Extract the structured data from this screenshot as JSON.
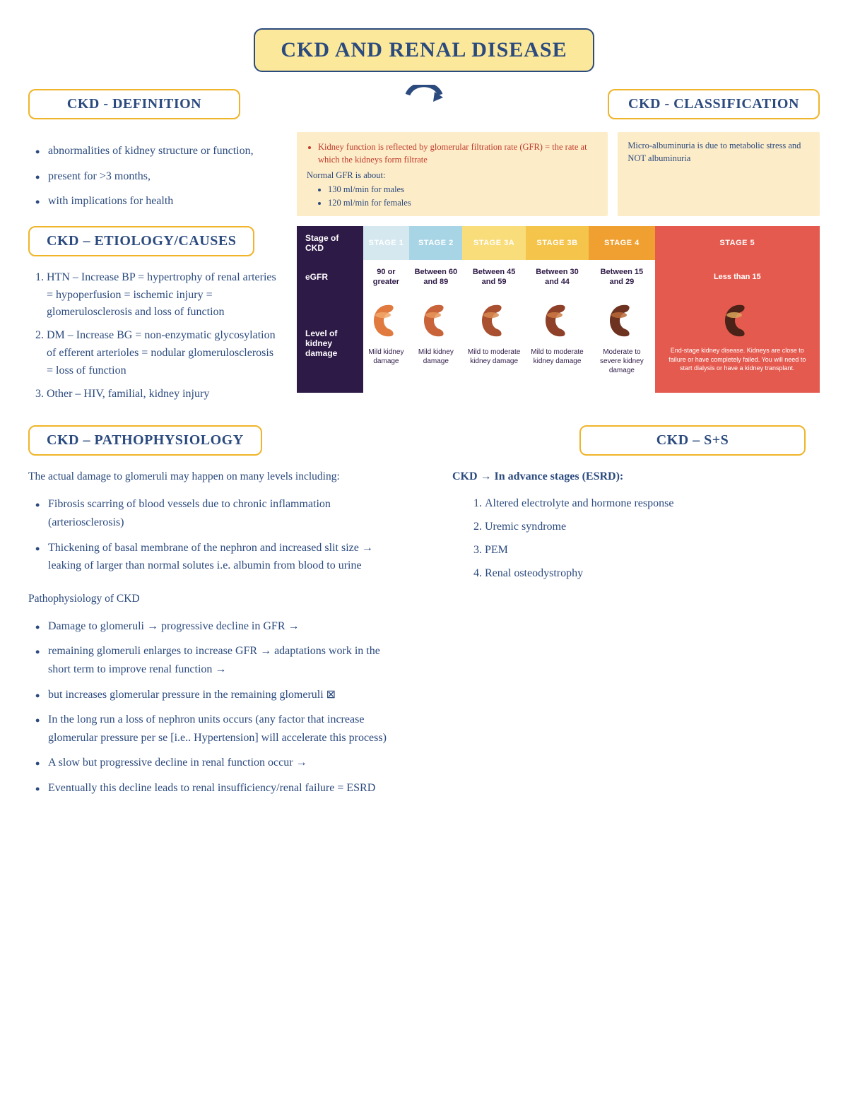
{
  "title": "CKD AND RENAL DISEASE",
  "colors": {
    "title_bg": "#fce89a",
    "border_navy": "#2b4a7e",
    "section_border": "#f0b429",
    "info_bg": "#fdecc8",
    "table_header_bg": "#2e1a47",
    "red_text": "#c0392b"
  },
  "sections": {
    "definition": {
      "heading": "CKD - DEFINITION",
      "bullets": [
        "abnormalities of kidney structure or function,",
        "present for >3 months,",
        "with implications for health"
      ]
    },
    "classification": {
      "heading": "CKD - CLASSIFICATION",
      "info1": {
        "line1_red": "Kidney function is reflected by glomerular filtration rate (GFR)",
        "line1_rest": " = the rate at which the kidneys form filtrate",
        "line2": "Normal GFR is about:",
        "sub": [
          "130 ml/min for males",
          "120 ml/min for females"
        ]
      },
      "info2": "Micro-albuminuria is due to metabolic stress and NOT albuminuria"
    },
    "etiology": {
      "heading": "CKD – ETIOLOGY/CAUSES",
      "items": [
        "HTN – Increase BP = hypertrophy of renal arteries = hypoperfusion = ischemic injury = glomerulosclerosis and loss of function",
        "DM – Increase BG = non-enzymatic glycosylation of efferent arterioles = nodular glomerulosclerosis = loss of function",
        "Other – HIV, familial, kidney injury"
      ]
    },
    "patho": {
      "heading": "CKD – PATHOPHYSIOLOGY",
      "intro": "The actual damage to glomeruli may happen on many levels including:",
      "b1": [
        "Fibrosis scarring of blood vessels due to chronic inflammation (arteriosclerosis)",
        "Thickening of basal membrane of the nephron and increased slit size → leaking of larger than normal solutes i.e. albumin from blood to urine"
      ],
      "sub2": "Pathophysiology of CKD",
      "b2": [
        "Damage to glomeruli → progressive decline in GFR →",
        "remaining glomeruli enlarges to increase GFR  → adaptations work in the short term to improve renal function →",
        "but increases glomerular pressure in the remaining glomeruli ⊠",
        "In the long run a loss of nephron units occurs  (any factor that increase glomerular pressure per se [i.e.. Hypertension] will accelerate this process)",
        "A slow but progressive decline in renal function occur →",
        "Eventually this decline leads to renal insufficiency/renal failure = ESRD"
      ]
    },
    "ss": {
      "heading": "CKD – S+S",
      "sub": "CKD → In advance stages (ESRD):",
      "items": [
        "Altered electrolyte and hormone response",
        "Uremic syndrome",
        "PEM",
        "Renal osteodystrophy"
      ]
    }
  },
  "stage_table": {
    "row_labels": [
      "Stage of CKD",
      "eGFR",
      "Level of kidney damage"
    ],
    "stages": [
      {
        "name": "STAGE 1",
        "bg": "#d5e8f0",
        "egfr": "90 or greater",
        "dmg": "Mild kidney damage",
        "kidney_fill": "#e07a3f",
        "kidney_band": "#f2a76a"
      },
      {
        "name": "STAGE 2",
        "bg": "#a8d5e5",
        "egfr": "Between 60 and 89",
        "dmg": "Mild kidney damage",
        "kidney_fill": "#c9643a",
        "kidney_band": "#e8955a"
      },
      {
        "name": "STAGE 3A",
        "bg": "#f9dd7a",
        "egfr": "Between 45 and 59",
        "dmg": "Mild to moderate kidney damage",
        "kidney_fill": "#a8502f",
        "kidney_band": "#d98850"
      },
      {
        "name": "STAGE 3B",
        "bg": "#f5c44a",
        "egfr": "Between 30 and 44",
        "dmg": "Mild to moderate kidney damage",
        "kidney_fill": "#8e4028",
        "kidney_band": "#cc7a45"
      },
      {
        "name": "STAGE 4",
        "bg": "#f0a030",
        "egfr": "Between 15 and 29",
        "dmg": "Moderate to severe kidney damage",
        "kidney_fill": "#6e3220",
        "kidney_band": "#b86838"
      },
      {
        "name": "STAGE 5",
        "bg": "#e55a4f",
        "egfr": "Less than 15",
        "dmg": "End-stage kidney disease. Kidneys are close to failure or have completely failed. You will need to start dialysis or have a kidney transplant.",
        "kidney_fill": "#4a2218",
        "kidney_band": "#d9a55a"
      }
    ]
  }
}
